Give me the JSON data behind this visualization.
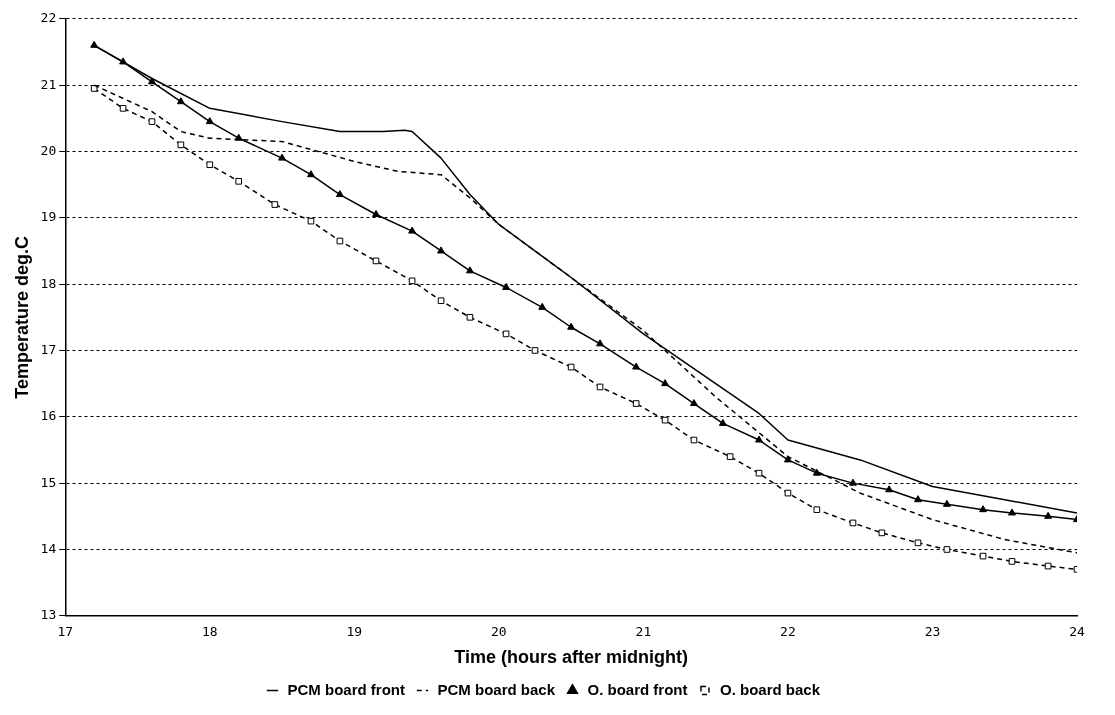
{
  "chart_data": {
    "type": "line",
    "xlabel": "Time (hours after midnight)",
    "ylabel": "Temperature deg.C",
    "xlim": [
      17,
      24
    ],
    "xticks": [
      17,
      18,
      19,
      20,
      21,
      22,
      23,
      24
    ],
    "ylim": [
      13,
      22
    ],
    "yticks": [
      13,
      14,
      15,
      16,
      17,
      18,
      19,
      20,
      21,
      22
    ],
    "grid": "y",
    "legend": "bottom",
    "series": [
      {
        "name": "PCM board front",
        "color": "#000000",
        "line_style": "solid",
        "marker": "none",
        "x": [
          17.2,
          17.6,
          18.0,
          18.5,
          18.9,
          19.2,
          19.35,
          19.4,
          19.6,
          19.8,
          20.0,
          20.5,
          21.0,
          21.5,
          21.8,
          22.0,
          22.5,
          23.0,
          23.5,
          24.0
        ],
        "values": [
          21.6,
          21.1,
          20.65,
          20.45,
          20.3,
          20.3,
          20.32,
          20.3,
          19.9,
          19.35,
          18.9,
          18.1,
          17.25,
          16.5,
          16.05,
          15.65,
          15.35,
          14.95,
          14.75,
          14.55
        ]
      },
      {
        "name": "PCM board back",
        "color": "#000000",
        "line_style": "dashed",
        "marker": "none",
        "x": [
          17.2,
          17.6,
          17.8,
          18.0,
          18.5,
          19.0,
          19.3,
          19.6,
          19.8,
          20.0,
          20.5,
          21.0,
          21.5,
          22.0,
          22.5,
          23.0,
          23.5,
          24.0
        ],
        "values": [
          21.0,
          20.6,
          20.3,
          20.2,
          20.15,
          19.85,
          19.7,
          19.65,
          19.3,
          18.9,
          18.1,
          17.3,
          16.3,
          15.4,
          14.85,
          14.45,
          14.15,
          13.95
        ]
      },
      {
        "name": "O. board front",
        "color": "#000000",
        "line_style": "solid",
        "marker": "triangle",
        "x": [
          17.2,
          17.4,
          17.6,
          17.8,
          18.0,
          18.2,
          18.5,
          18.7,
          18.9,
          19.15,
          19.4,
          19.6,
          19.8,
          20.05,
          20.3,
          20.5,
          20.7,
          20.95,
          21.15,
          21.35,
          21.55,
          21.8,
          22.0,
          22.2,
          22.45,
          22.7,
          22.9,
          23.1,
          23.35,
          23.55,
          23.8,
          24.0
        ],
        "values": [
          21.6,
          21.35,
          21.05,
          20.75,
          20.45,
          20.2,
          19.9,
          19.65,
          19.35,
          19.05,
          18.8,
          18.5,
          18.2,
          17.95,
          17.65,
          17.35,
          17.1,
          16.75,
          16.5,
          16.2,
          15.9,
          15.65,
          15.35,
          15.15,
          15.0,
          14.9,
          14.75,
          14.68,
          14.6,
          14.55,
          14.5,
          14.45
        ]
      },
      {
        "name": "O. board back",
        "color": "#000000",
        "line_style": "dashed",
        "marker": "square",
        "x": [
          17.2,
          17.4,
          17.6,
          17.8,
          18.0,
          18.2,
          18.45,
          18.7,
          18.9,
          19.15,
          19.4,
          19.6,
          19.8,
          20.05,
          20.25,
          20.5,
          20.7,
          20.95,
          21.15,
          21.35,
          21.6,
          21.8,
          22.0,
          22.2,
          22.45,
          22.65,
          22.9,
          23.1,
          23.35,
          23.55,
          23.8,
          24.0
        ],
        "values": [
          20.95,
          20.65,
          20.45,
          20.1,
          19.8,
          19.55,
          19.2,
          18.95,
          18.65,
          18.35,
          18.05,
          17.75,
          17.5,
          17.25,
          17.0,
          16.75,
          16.45,
          16.2,
          15.95,
          15.65,
          15.4,
          15.15,
          14.85,
          14.6,
          14.4,
          14.25,
          14.1,
          14.0,
          13.9,
          13.82,
          13.75,
          13.7
        ]
      }
    ]
  }
}
